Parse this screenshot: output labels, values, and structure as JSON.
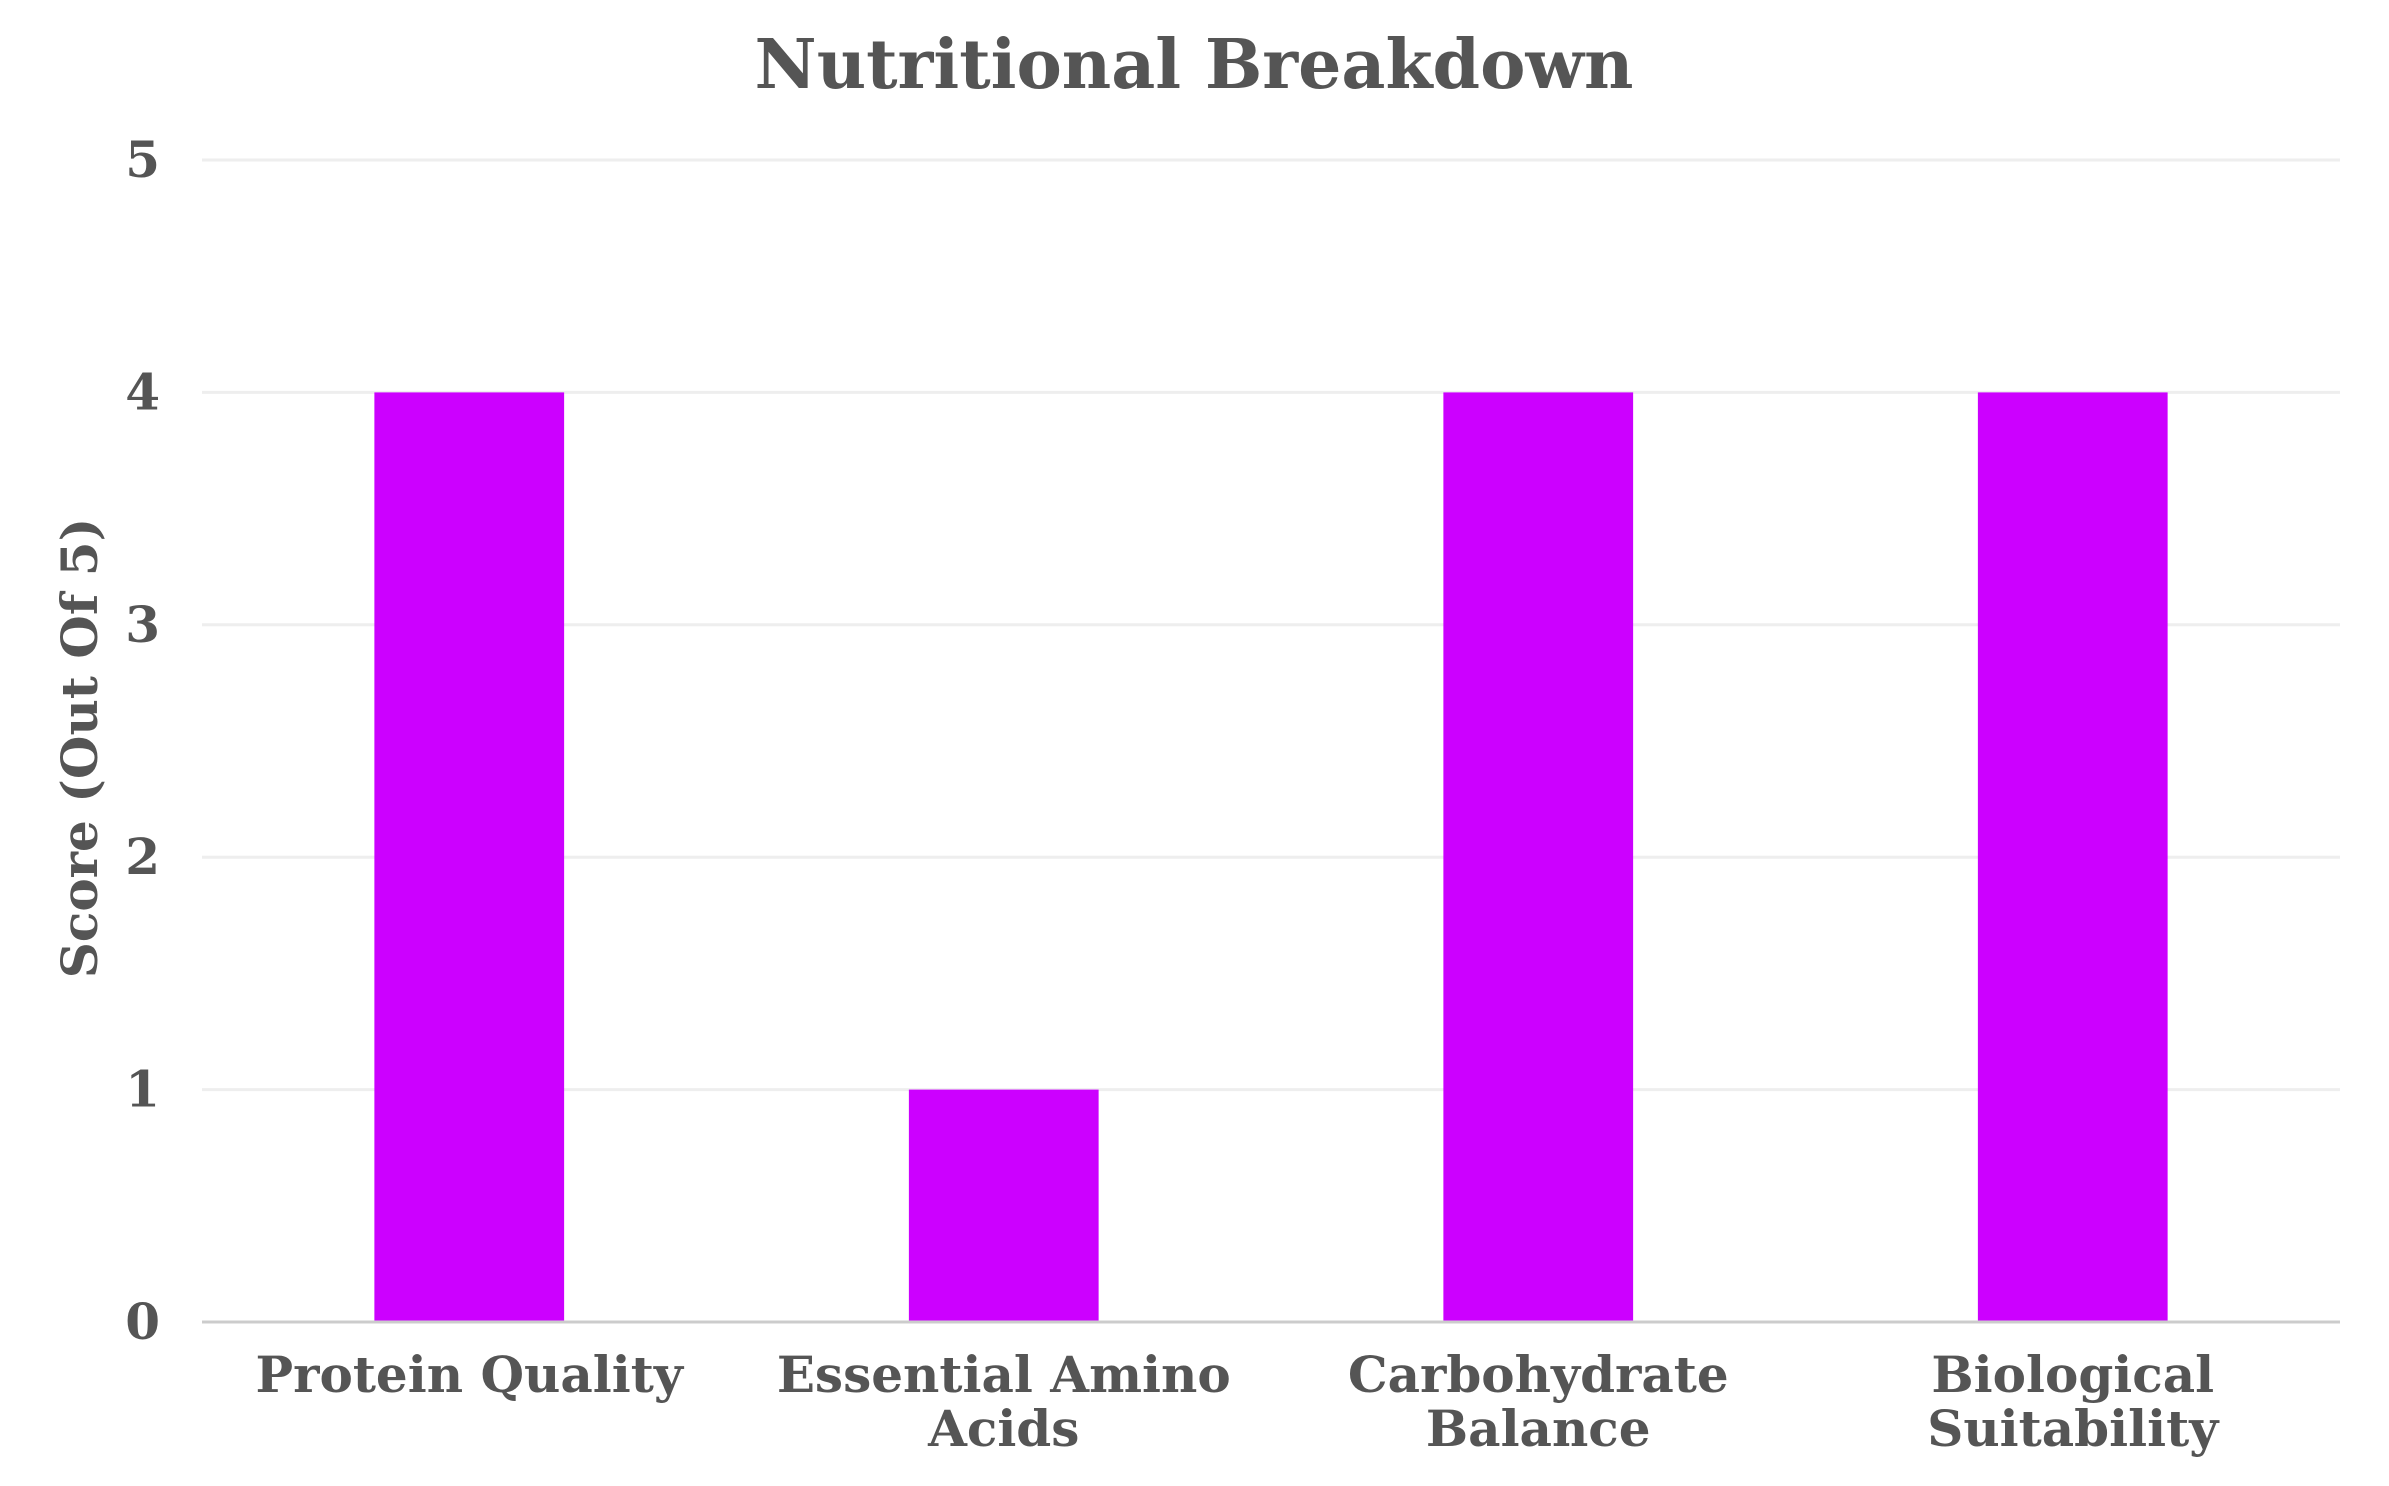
{
  "chart_data": {
    "type": "bar",
    "title": "Nutritional Breakdown",
    "xlabel": "",
    "ylabel": "Score (Out Of 5)",
    "categories": [
      [
        "Protein Quality"
      ],
      [
        "Essential Amino",
        "Acids"
      ],
      [
        "Carbohydrate",
        "Balance"
      ],
      [
        "Biological",
        "Suitability"
      ]
    ],
    "values": [
      4,
      1,
      4,
      4
    ],
    "ylim": [
      0,
      5
    ],
    "yticks": [
      "0",
      "1",
      "2",
      "3",
      "4",
      "5"
    ],
    "grid": true,
    "legend": "none",
    "colors": {
      "bar": "#cc00ff",
      "text": "#555555",
      "grid": "#eeeeee",
      "axis": "#cccccc"
    }
  }
}
